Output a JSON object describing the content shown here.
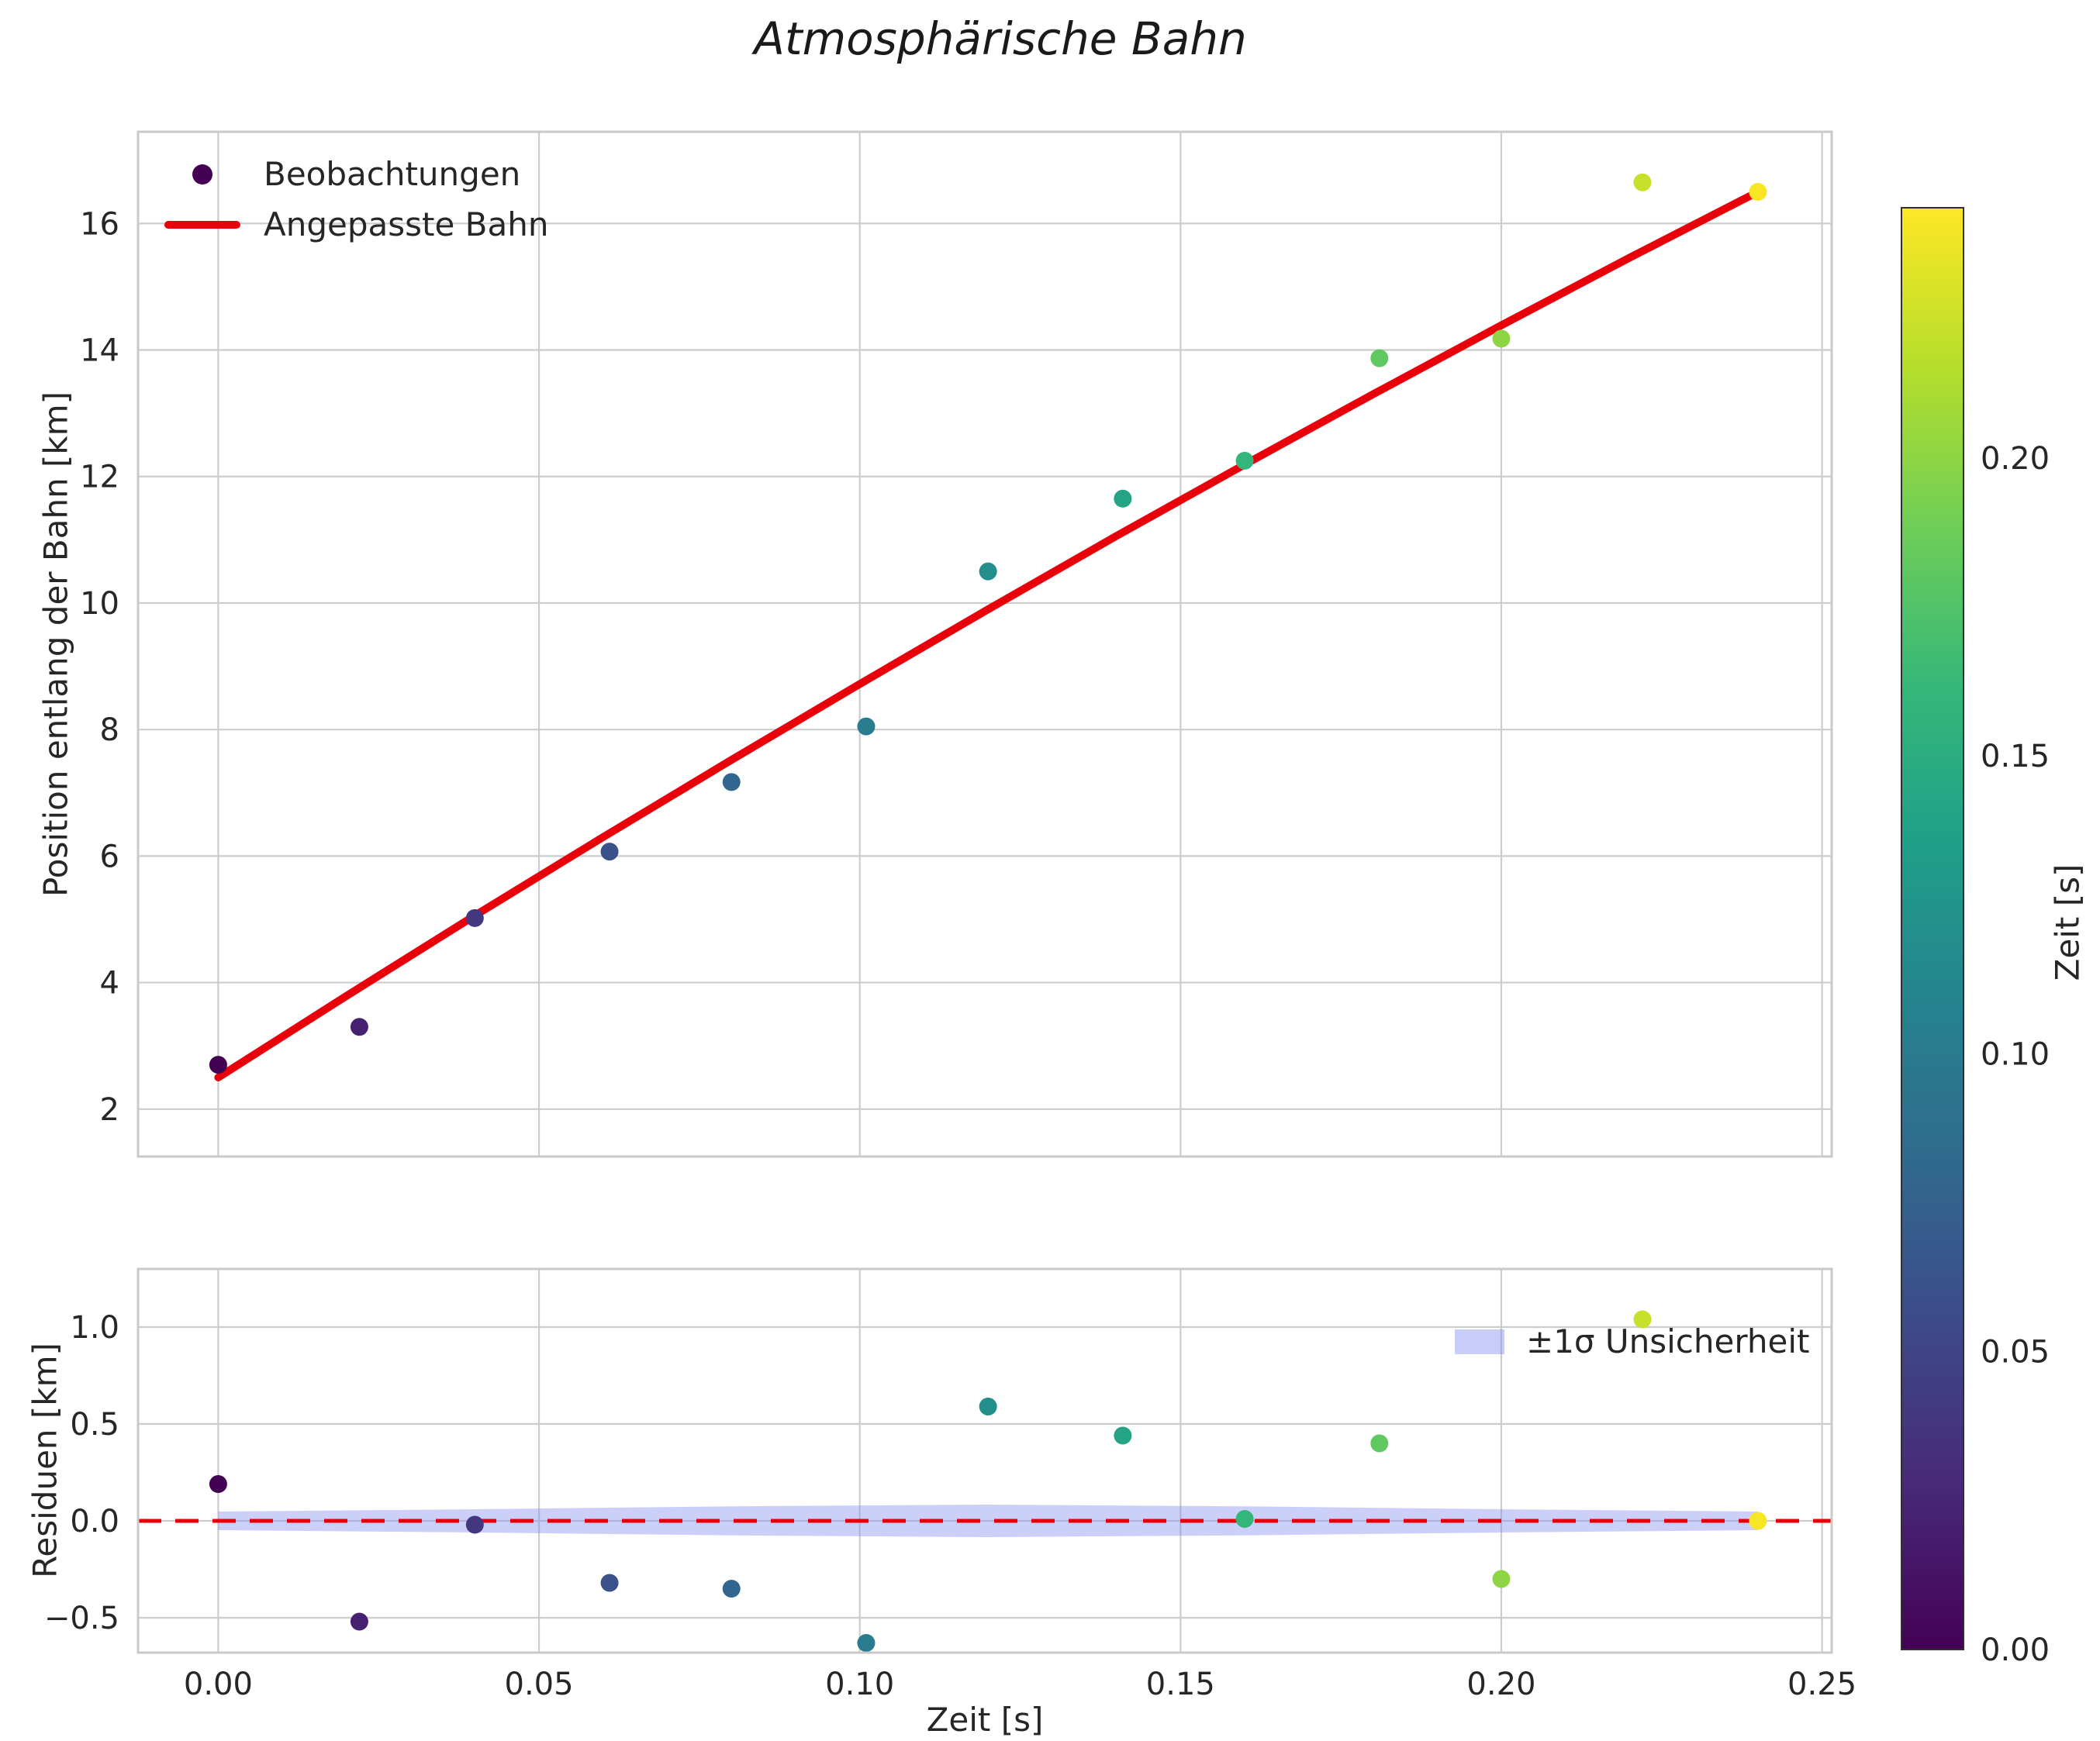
{
  "title": "Atmosphärische Bahn",
  "main": {
    "ylabel": "Position entlang der Bahn [km]",
    "legend": {
      "observations": "Beobachtungen",
      "fit": "Angepasste Bahn"
    }
  },
  "residuals": {
    "ylabel": "Residuen [km]",
    "xlabel": "Zeit [s]",
    "legend": {
      "band": "±1σ Unsicherheit"
    }
  },
  "colorbar": {
    "label": "Zeit [s]",
    "tick_labels": [
      "0.00",
      "0.05",
      "0.10",
      "0.15",
      "0.20"
    ],
    "tick_values": [
      0.0,
      0.05,
      0.1,
      0.15,
      0.2
    ],
    "vmin": 0.0,
    "vmax": 0.242,
    "viridis_stops": [
      "#440154",
      "#482878",
      "#3e4989",
      "#31688e",
      "#26828e",
      "#1f9e89",
      "#35b779",
      "#6ece58",
      "#b5de2b",
      "#fde725"
    ]
  },
  "style": {
    "grid_color": "#cccccc",
    "spine_color": "#c9c9c9",
    "text_color": "#262626",
    "fit_color": "#e8000b",
    "band_color": "#8690ee",
    "band_opacity": 0.42,
    "colorbar_outline": "#2f2f2f",
    "legend_marker_color": "#440154"
  },
  "chart_data": [
    {
      "type": "scatter",
      "title": "Atmosphärische Bahn",
      "xlabel": "Zeit [s]",
      "ylabel": "Position entlang der Bahn [km]",
      "xlim": [
        -0.0125,
        0.2515
      ],
      "ylim": [
        1.25,
        17.45
      ],
      "xticks": [
        0.0,
        0.05,
        0.1,
        0.15,
        0.2,
        0.25
      ],
      "yticks": [
        2,
        4,
        6,
        8,
        10,
        12,
        14,
        16
      ],
      "ytick_labels": [
        "2",
        "4",
        "6",
        "8",
        "10",
        "12",
        "14",
        "16"
      ],
      "grid": true,
      "legend_position": "upper left",
      "series": [
        {
          "name": "Beobachtungen",
          "type": "scatter",
          "colormap": "viridis",
          "color_by": "x",
          "x": [
            0.0,
            0.022,
            0.04,
            0.061,
            0.08,
            0.101,
            0.12,
            0.141,
            0.16,
            0.181,
            0.2,
            0.222,
            0.24
          ],
          "y": [
            2.7,
            3.3,
            5.02,
            6.07,
            7.17,
            8.05,
            10.5,
            11.65,
            12.25,
            13.87,
            14.18,
            16.65,
            16.5
          ]
        },
        {
          "name": "Angepasste Bahn",
          "type": "line",
          "color": "#e8000b",
          "x": [
            0.0,
            0.02,
            0.04,
            0.06,
            0.08,
            0.1,
            0.12,
            0.14,
            0.16,
            0.18,
            0.2,
            0.22,
            0.24
          ],
          "y": [
            2.5,
            3.79,
            5.06,
            6.3,
            7.52,
            8.72,
            9.9,
            11.06,
            12.19,
            13.3,
            14.39,
            15.46,
            16.5
          ]
        }
      ]
    },
    {
      "type": "scatter",
      "xlabel": "Zeit [s]",
      "ylabel": "Residuen [km]",
      "xlim": [
        -0.0125,
        0.2515
      ],
      "ylim": [
        -0.68,
        1.3
      ],
      "yticks": [
        -0.5,
        0.0,
        0.5,
        1.0
      ],
      "ytick_labels": [
        "−0.5",
        "0.0",
        "0.5",
        "1.0"
      ],
      "xtick_labels": [
        "0.00",
        "0.05",
        "0.10",
        "0.15",
        "0.20",
        "0.25"
      ],
      "grid": true,
      "legend_position": "upper right",
      "zero_line": {
        "color": "#e8000b",
        "style": "dashed"
      },
      "band": {
        "label": "±1σ Unsicherheit",
        "x": [
          0.0,
          0.04,
          0.08,
          0.12,
          0.16,
          0.2,
          0.24
        ],
        "halfwidth": [
          0.048,
          0.06,
          0.075,
          0.084,
          0.075,
          0.06,
          0.048
        ]
      },
      "series": [
        {
          "name": "Residuen",
          "type": "scatter",
          "colormap": "viridis",
          "color_by": "x",
          "x": [
            0.0,
            0.022,
            0.04,
            0.061,
            0.08,
            0.101,
            0.12,
            0.141,
            0.16,
            0.181,
            0.2,
            0.222,
            0.24
          ],
          "y": [
            0.19,
            -0.52,
            -0.02,
            -0.32,
            -0.35,
            -0.63,
            0.59,
            0.44,
            0.01,
            0.4,
            -0.3,
            1.04,
            0.0
          ]
        }
      ]
    }
  ]
}
